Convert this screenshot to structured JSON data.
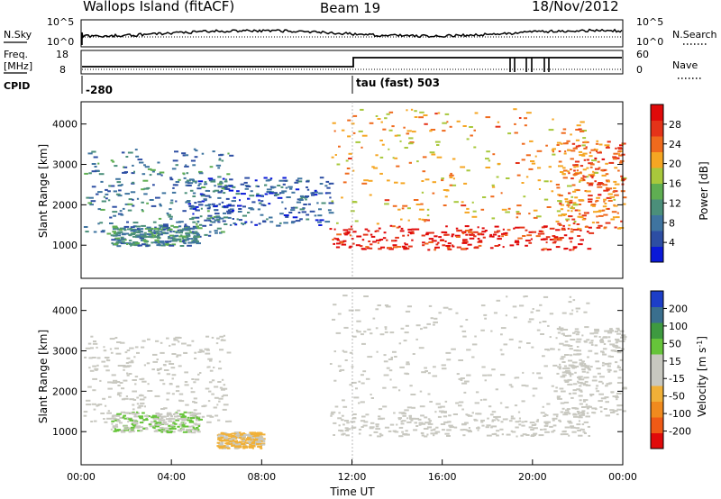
{
  "header": {
    "title": "Wallops Island (fitACF)",
    "beam": "Beam 19",
    "date": "18/Nov/2012"
  },
  "left_labels": {
    "nsky": "N.Sky",
    "freq": "Freq.",
    "mhz": "[MHz]",
    "cpid": "CPID"
  },
  "right_labels": {
    "nsearch": "N.Search",
    "nave": "Nave"
  },
  "noise_panel": {
    "left_ticks": [
      "10^5",
      "10^0"
    ],
    "right_ticks": [
      "10^5",
      "10^0"
    ]
  },
  "freq_panel": {
    "left_ticks": [
      "18",
      "8"
    ],
    "right_ticks": [
      "60",
      "0"
    ]
  },
  "cpid_panel": {
    "segments": [
      {
        "label": "-280",
        "start_hour": 0
      },
      {
        "label": "tau (fast) 503",
        "start_hour": 12
      }
    ]
  },
  "colors": {
    "power_scale": [
      "#0a19d8",
      "#2d4ea3",
      "#3f74a0",
      "#4b8f7a",
      "#5fae52",
      "#a8c83c",
      "#f5a623",
      "#ef6a1d",
      "#e43319",
      "#e00a0a"
    ],
    "velocity_scale": [
      "#e00a0a",
      "#ef5a16",
      "#f08a1e",
      "#f0b038",
      "#c8c8c0",
      "#c8c8c0",
      "#66c43a",
      "#3e9a40",
      "#3a6f8e",
      "#1d3ec8"
    ]
  },
  "chart_data": [
    {
      "type": "heatmap",
      "title": "",
      "xlabel": "",
      "ylabel": "Slant Range [km]",
      "xlim": [
        0,
        24
      ],
      "ylim": [
        180,
        4550
      ],
      "yticks": [
        "1000",
        "2000",
        "3000",
        "4000"
      ],
      "colorbar": {
        "label": "Power [dB]",
        "ticks": [
          "28",
          "24",
          "20",
          "16",
          "12",
          "8",
          "4"
        ],
        "range": [
          0,
          32
        ]
      },
      "regions": [
        {
          "x": [
            0.1,
            6.6
          ],
          "y": [
            1250,
            3400
          ],
          "level": 9
        },
        {
          "x": [
            1.3,
            5.2
          ],
          "y": [
            1000,
            1500
          ],
          "level": 10
        },
        {
          "x": [
            4.5,
            11.0
          ],
          "y": [
            1500,
            2700
          ],
          "level": 6
        },
        {
          "x": [
            11.0,
            22.5
          ],
          "y": [
            900,
            1500
          ],
          "level": 29
        },
        {
          "x": [
            11.0,
            22.5
          ],
          "y": [
            1500,
            4400
          ],
          "level": 21
        },
        {
          "x": [
            21.0,
            24.0
          ],
          "y": [
            1400,
            3600
          ],
          "level": 24
        }
      ]
    },
    {
      "type": "heatmap",
      "title": "",
      "xlabel": "Time UT",
      "ylabel": "Slant Range [km]",
      "xlim": [
        0,
        24
      ],
      "ylim": [
        180,
        4550
      ],
      "xticks": [
        "00:00",
        "04:00",
        "08:00",
        "12:00",
        "16:00",
        "20:00",
        "00:00"
      ],
      "yticks": [
        "1000",
        "2000",
        "3000",
        "4000"
      ],
      "colorbar": {
        "label": "Velocity [m s^-1]",
        "ticks": [
          "200",
          "100",
          "50",
          "15",
          "-15",
          "-50",
          "-100",
          "-200"
        ],
        "range": [
          -250,
          250
        ]
      },
      "regions": [
        {
          "x": [
            0.1,
            6.6
          ],
          "y": [
            1250,
            3400
          ],
          "level": 0
        },
        {
          "x": [
            1.3,
            5.2
          ],
          "y": [
            1000,
            1500
          ],
          "level": 45
        },
        {
          "x": [
            6.0,
            8.0
          ],
          "y": [
            600,
            1000
          ],
          "level": -60
        },
        {
          "x": [
            11.0,
            22.5
          ],
          "y": [
            900,
            1500
          ],
          "level": 0
        },
        {
          "x": [
            11.0,
            22.5
          ],
          "y": [
            1500,
            4400
          ],
          "level": 10
        },
        {
          "x": [
            21.0,
            24.0
          ],
          "y": [
            1400,
            3600
          ],
          "level": 0
        }
      ]
    }
  ]
}
